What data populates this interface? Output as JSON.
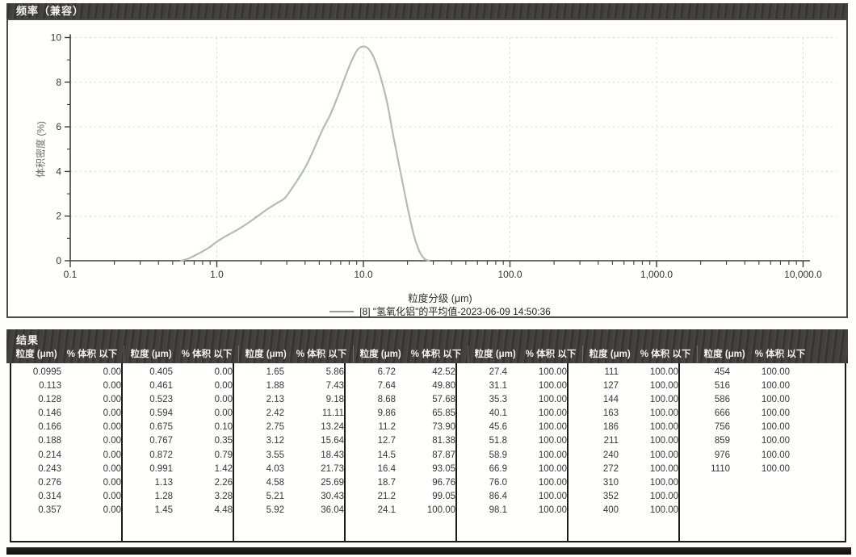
{
  "colors": {
    "curve": "#b4bbb2",
    "grid_h": "#d6ddd1",
    "grid_v": "#cdd8d2",
    "axis": "#3f3e3c",
    "tick_text": "#343332",
    "bar_bg": "#3d3a37",
    "bar_text": "#f2f1ee"
  },
  "chart_panel": {
    "title": "频率（兼容）",
    "ylabel": "体积密度 (%)",
    "xlabel": "粒度分级 (μm)",
    "legend_label": "[8] \"氢氧化铝\"的平均值-2023-06-09 14:50:36"
  },
  "chart_data": {
    "type": "line",
    "title": "频率（兼容）",
    "xlabel": "粒度分级 (μm)",
    "ylabel": "体积密度 (%)",
    "x_scale": "log",
    "xlim": [
      0.1,
      10000
    ],
    "ylim": [
      0,
      10
    ],
    "x_tick_values": [
      0.1,
      1,
      10,
      100,
      1000,
      10000
    ],
    "x_tick_labels": [
      "0.1",
      "1.0",
      "10.0",
      "100.0",
      "1,000.0",
      "10,000.0"
    ],
    "y_tick_values": [
      0,
      2,
      4,
      6,
      8,
      10
    ],
    "grid": true,
    "legend_position": "bottom",
    "series": [
      {
        "name": "[8] \"氢氧化铝\"的平均值-2023-06-09 14:50:36",
        "x": [
          0.57,
          0.63,
          0.7,
          0.78,
          0.88,
          1.0,
          1.15,
          1.35,
          1.6,
          1.9,
          2.2,
          2.6,
          2.9,
          3.3,
          3.7,
          4.1,
          4.6,
          5.2,
          6.0,
          7.0,
          8.0,
          9.0,
          9.9,
          10.8,
          11.8,
          13.0,
          14.5,
          16.0,
          18.0,
          20.0,
          22.0,
          24.0,
          26.0,
          28.0
        ],
        "y": [
          0,
          0.08,
          0.22,
          0.38,
          0.58,
          0.85,
          1.1,
          1.35,
          1.65,
          2.0,
          2.3,
          2.6,
          2.8,
          3.3,
          3.8,
          4.3,
          5.0,
          5.8,
          6.6,
          7.7,
          8.7,
          9.4,
          9.6,
          9.5,
          9.1,
          8.3,
          7.1,
          5.6,
          3.9,
          2.4,
          1.2,
          0.45,
          0.1,
          0
        ]
      }
    ]
  },
  "results": {
    "title": "结果",
    "size_header": "粒度 (μm)",
    "pct_header": "% 体积 以下",
    "groups": [
      [
        [
          "0.0995",
          "0.00"
        ],
        [
          "0.113",
          "0.00"
        ],
        [
          "0.128",
          "0.00"
        ],
        [
          "0.146",
          "0.00"
        ],
        [
          "0.166",
          "0.00"
        ],
        [
          "0.188",
          "0.00"
        ],
        [
          "0.214",
          "0.00"
        ],
        [
          "0.243",
          "0.00"
        ],
        [
          "0.276",
          "0.00"
        ],
        [
          "0.314",
          "0.00"
        ],
        [
          "0.357",
          "0.00"
        ]
      ],
      [
        [
          "0.405",
          "0.00"
        ],
        [
          "0.461",
          "0.00"
        ],
        [
          "0.523",
          "0.00"
        ],
        [
          "0.594",
          "0.00"
        ],
        [
          "0.675",
          "0.10"
        ],
        [
          "0.767",
          "0.35"
        ],
        [
          "0.872",
          "0.79"
        ],
        [
          "0.991",
          "1.42"
        ],
        [
          "1.13",
          "2.26"
        ],
        [
          "1.28",
          "3.28"
        ],
        [
          "1.45",
          "4.48"
        ]
      ],
      [
        [
          "1.65",
          "5.86"
        ],
        [
          "1.88",
          "7.43"
        ],
        [
          "2.13",
          "9.18"
        ],
        [
          "2.42",
          "11.11"
        ],
        [
          "2.75",
          "13.24"
        ],
        [
          "3.12",
          "15.64"
        ],
        [
          "3.55",
          "18.43"
        ],
        [
          "4.03",
          "21.73"
        ],
        [
          "4.58",
          "25.69"
        ],
        [
          "5.21",
          "30.43"
        ],
        [
          "5.92",
          "36.04"
        ]
      ],
      [
        [
          "6.72",
          "42.52"
        ],
        [
          "7.64",
          "49.80"
        ],
        [
          "8.68",
          "57.68"
        ],
        [
          "9.86",
          "65.85"
        ],
        [
          "11.2",
          "73.90"
        ],
        [
          "12.7",
          "81.38"
        ],
        [
          "14.5",
          "87.87"
        ],
        [
          "16.4",
          "93.05"
        ],
        [
          "18.7",
          "96.76"
        ],
        [
          "21.2",
          "99.05"
        ],
        [
          "24.1",
          "100.00"
        ]
      ],
      [
        [
          "27.4",
          "100.00"
        ],
        [
          "31.1",
          "100.00"
        ],
        [
          "35.3",
          "100.00"
        ],
        [
          "40.1",
          "100.00"
        ],
        [
          "45.6",
          "100.00"
        ],
        [
          "51.8",
          "100.00"
        ],
        [
          "58.9",
          "100.00"
        ],
        [
          "66.9",
          "100.00"
        ],
        [
          "76.0",
          "100.00"
        ],
        [
          "86.4",
          "100.00"
        ],
        [
          "98.1",
          "100.00"
        ]
      ],
      [
        [
          "111",
          "100.00"
        ],
        [
          "127",
          "100.00"
        ],
        [
          "144",
          "100.00"
        ],
        [
          "163",
          "100.00"
        ],
        [
          "186",
          "100.00"
        ],
        [
          "211",
          "100.00"
        ],
        [
          "240",
          "100.00"
        ],
        [
          "272",
          "100.00"
        ],
        [
          "310",
          "100.00"
        ],
        [
          "352",
          "100.00"
        ],
        [
          "400",
          "100.00"
        ]
      ],
      [
        [
          "454",
          "100.00"
        ],
        [
          "516",
          "100.00"
        ],
        [
          "586",
          "100.00"
        ],
        [
          "666",
          "100.00"
        ],
        [
          "756",
          "100.00"
        ],
        [
          "859",
          "100.00"
        ],
        [
          "976",
          "100.00"
        ],
        [
          "1110",
          "100.00"
        ]
      ]
    ]
  }
}
